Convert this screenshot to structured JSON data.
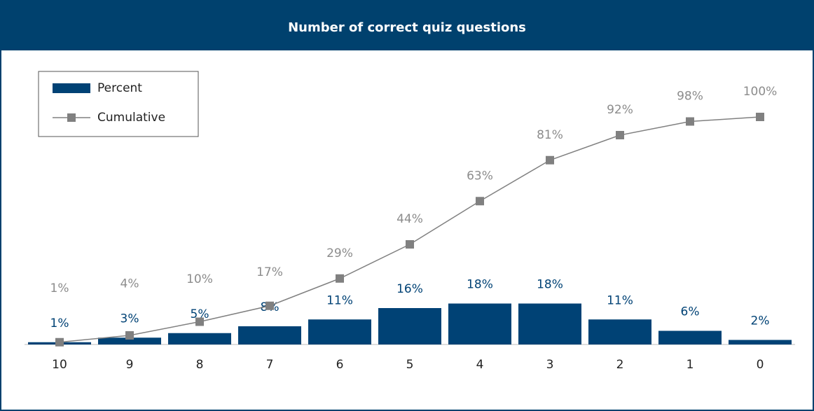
{
  "chart_data": {
    "type": "bar",
    "title": "Number of correct quiz questions",
    "categories": [
      "10",
      "9",
      "8",
      "7",
      "6",
      "5",
      "4",
      "3",
      "2",
      "1",
      "0"
    ],
    "ylim": [
      0,
      100
    ],
    "legend": "upper left",
    "series": [
      {
        "name": "Percent",
        "type": "bar",
        "color": "#004275",
        "values": [
          1,
          3,
          5,
          8,
          11,
          16,
          18,
          18,
          11,
          6,
          2
        ],
        "value_labels": [
          "1%",
          "3%",
          "5%",
          "8%",
          "11%",
          "16%",
          "18%",
          "18%",
          "11%",
          "6%",
          "2%"
        ]
      },
      {
        "name": "Cumulative",
        "type": "line",
        "color": "#808080",
        "values": [
          1,
          4,
          10,
          17,
          29,
          44,
          63,
          81,
          92,
          98,
          100
        ],
        "value_labels": [
          "1%",
          "4%",
          "10%",
          "17%",
          "29%",
          "44%",
          "63%",
          "81%",
          "92%",
          "98%",
          "100%"
        ]
      }
    ]
  }
}
